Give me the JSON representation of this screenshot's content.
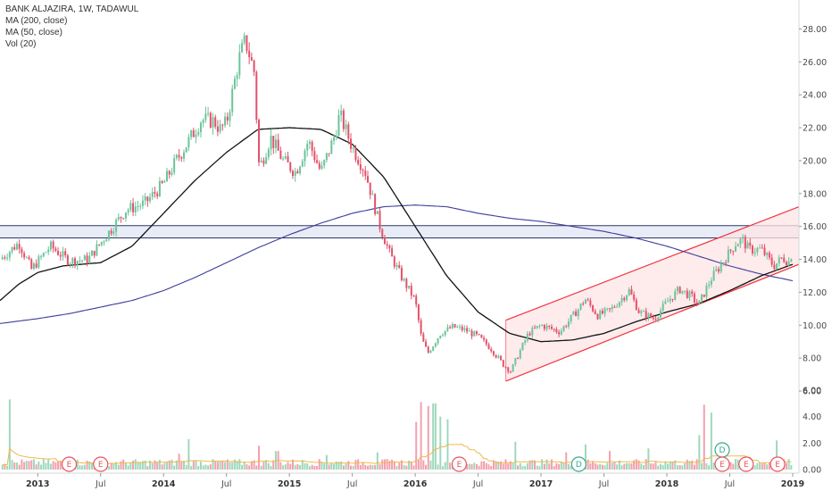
{
  "legend": {
    "title": "BANK ALJAZIRA, 1W, TADAWUL",
    "ma200": "MA (200, close)",
    "ma50": "MA (50, close)",
    "vol": "Vol (20)"
  },
  "colors": {
    "up": "#6bc49a",
    "down": "#e4516a",
    "up_vol": "#9fd8bd",
    "down_vol": "#f2a1ad",
    "ma50": "#111111",
    "ma200": "#3c3c9c",
    "vol_ma": "#f2b84b",
    "channel": "#f0343f",
    "channel_fill": "#fde4e6",
    "resistance_band": "#e8ecf7",
    "resistance_line": "#2c3a66",
    "event_e": "#e9535f",
    "event_d": "#3aa88e"
  },
  "chart_data": {
    "type": "candlestick",
    "title": "BANK ALJAZIRA, 1W, TADAWUL",
    "price_axis": {
      "ylim": [
        6,
        29
      ],
      "ticks": [
        "6.00",
        "8.00",
        "10.00",
        "12.00",
        "14.00",
        "16.00",
        "18.00",
        "20.00",
        "22.00",
        "24.00",
        "26.00",
        "28.00"
      ]
    },
    "volume_axis": {
      "ylim": [
        0,
        6
      ],
      "ticks": [
        "0.00",
        "2.00",
        "4.00",
        "6.00"
      ]
    },
    "x_axis": {
      "range": [
        2012.7,
        2019.05
      ],
      "ticks": [
        {
          "label": "2013",
          "t": 2013.0,
          "bold": true
        },
        {
          "label": "Jul",
          "t": 2013.5,
          "bold": false
        },
        {
          "label": "2014",
          "t": 2014.0,
          "bold": true
        },
        {
          "label": "Jul",
          "t": 2014.5,
          "bold": false
        },
        {
          "label": "2015",
          "t": 2015.0,
          "bold": true
        },
        {
          "label": "Jul",
          "t": 2015.5,
          "bold": false
        },
        {
          "label": "2016",
          "t": 2016.0,
          "bold": true
        },
        {
          "label": "Jul",
          "t": 2016.5,
          "bold": false
        },
        {
          "label": "2017",
          "t": 2017.0,
          "bold": true
        },
        {
          "label": "Jul",
          "t": 2017.5,
          "bold": false
        },
        {
          "label": "2018",
          "t": 2018.0,
          "bold": true
        },
        {
          "label": "Jul",
          "t": 2018.5,
          "bold": false
        },
        {
          "label": "2019",
          "t": 2019.0,
          "bold": true
        }
      ]
    },
    "close_keypoints": [
      [
        2012.7,
        14.0
      ],
      [
        2012.85,
        15.0
      ],
      [
        2012.95,
        13.4
      ],
      [
        2013.1,
        14.8
      ],
      [
        2013.25,
        13.9
      ],
      [
        2013.4,
        14.0
      ],
      [
        2013.55,
        15.5
      ],
      [
        2013.7,
        17.0
      ],
      [
        2013.85,
        17.4
      ],
      [
        2014.0,
        18.6
      ],
      [
        2014.1,
        20.0
      ],
      [
        2014.2,
        21.2
      ],
      [
        2014.3,
        22.5
      ],
      [
        2014.4,
        22.4
      ],
      [
        2014.45,
        21.9
      ],
      [
        2014.5,
        22.3
      ],
      [
        2014.6,
        26.2
      ],
      [
        2014.65,
        27.3
      ],
      [
        2014.72,
        25.4
      ],
      [
        2014.76,
        19.5
      ],
      [
        2014.85,
        21.4
      ],
      [
        2014.95,
        20.0
      ],
      [
        2015.05,
        19.3
      ],
      [
        2015.15,
        21.2
      ],
      [
        2015.25,
        19.3
      ],
      [
        2015.35,
        21.3
      ],
      [
        2015.4,
        22.8
      ],
      [
        2015.5,
        20.8
      ],
      [
        2015.6,
        19.4
      ],
      [
        2015.65,
        18.0
      ],
      [
        2015.72,
        16.0
      ],
      [
        2015.8,
        14.3
      ],
      [
        2015.9,
        12.8
      ],
      [
        2016.0,
        11.5
      ],
      [
        2016.05,
        9.2
      ],
      [
        2016.1,
        8.3
      ],
      [
        2016.2,
        9.5
      ],
      [
        2016.3,
        9.9
      ],
      [
        2016.4,
        9.7
      ],
      [
        2016.5,
        9.3
      ],
      [
        2016.6,
        8.6
      ],
      [
        2016.7,
        7.6
      ],
      [
        2016.76,
        7.2
      ],
      [
        2016.8,
        7.9
      ],
      [
        2016.9,
        9.5
      ],
      [
        2017.0,
        10.0
      ],
      [
        2017.15,
        9.6
      ],
      [
        2017.3,
        11.0
      ],
      [
        2017.35,
        11.6
      ],
      [
        2017.45,
        10.6
      ],
      [
        2017.55,
        10.9
      ],
      [
        2017.7,
        12.1
      ],
      [
        2017.78,
        10.8
      ],
      [
        2017.9,
        10.4
      ],
      [
        2018.0,
        11.4
      ],
      [
        2018.1,
        12.2
      ],
      [
        2018.2,
        11.7
      ],
      [
        2018.25,
        11.2
      ],
      [
        2018.35,
        12.8
      ],
      [
        2018.45,
        13.9
      ],
      [
        2018.55,
        15.0
      ],
      [
        2018.6,
        15.2
      ],
      [
        2018.65,
        14.6
      ],
      [
        2018.75,
        14.6
      ],
      [
        2018.85,
        13.6
      ],
      [
        2018.92,
        14.1
      ],
      [
        2018.98,
        13.8
      ],
      [
        2019.0,
        14.9
      ]
    ],
    "ma50_keypoints": [
      [
        2012.7,
        11.5
      ],
      [
        2012.85,
        12.5
      ],
      [
        2013.0,
        13.2
      ],
      [
        2013.2,
        13.6
      ],
      [
        2013.5,
        13.8
      ],
      [
        2013.75,
        14.8
      ],
      [
        2014.0,
        16.8
      ],
      [
        2014.25,
        18.8
      ],
      [
        2014.5,
        20.5
      ],
      [
        2014.75,
        21.9
      ],
      [
        2015.0,
        22.0
      ],
      [
        2015.25,
        21.9
      ],
      [
        2015.5,
        21.0
      ],
      [
        2015.75,
        19.0
      ],
      [
        2016.0,
        16.0
      ],
      [
        2016.25,
        13.0
      ],
      [
        2016.5,
        10.8
      ],
      [
        2016.75,
        9.5
      ],
      [
        2017.0,
        9.0
      ],
      [
        2017.25,
        9.1
      ],
      [
        2017.5,
        9.5
      ],
      [
        2017.75,
        10.2
      ],
      [
        2018.0,
        10.8
      ],
      [
        2018.25,
        11.3
      ],
      [
        2018.5,
        12.1
      ],
      [
        2018.75,
        13.0
      ],
      [
        2019.0,
        13.7
      ]
    ],
    "ma200_keypoints": [
      [
        2012.7,
        10.1
      ],
      [
        2013.0,
        10.4
      ],
      [
        2013.25,
        10.7
      ],
      [
        2013.5,
        11.1
      ],
      [
        2013.75,
        11.5
      ],
      [
        2014.0,
        12.1
      ],
      [
        2014.25,
        12.9
      ],
      [
        2014.5,
        13.8
      ],
      [
        2014.75,
        14.7
      ],
      [
        2015.0,
        15.5
      ],
      [
        2015.25,
        16.2
      ],
      [
        2015.5,
        16.8
      ],
      [
        2015.75,
        17.2
      ],
      [
        2016.0,
        17.3
      ],
      [
        2016.25,
        17.2
      ],
      [
        2016.5,
        16.8
      ],
      [
        2016.75,
        16.5
      ],
      [
        2017.0,
        16.3
      ],
      [
        2017.25,
        16.0
      ],
      [
        2017.5,
        15.7
      ],
      [
        2017.75,
        15.3
      ],
      [
        2018.0,
        14.8
      ],
      [
        2018.25,
        14.2
      ],
      [
        2018.5,
        13.6
      ],
      [
        2018.75,
        13.1
      ],
      [
        2019.0,
        12.7
      ]
    ],
    "resistance_band": [
      15.3,
      16.05
    ],
    "channel": {
      "upper": [
        [
          2016.72,
          10.3
        ],
        [
          2019.05,
          17.2
        ]
      ],
      "lower": [
        [
          2016.72,
          6.6
        ],
        [
          2019.05,
          13.7
        ]
      ]
    },
    "volume_spikes": [
      [
        2012.78,
        5.3
      ],
      [
        2014.12,
        1.2
      ],
      [
        2014.2,
        2.3
      ],
      [
        2014.75,
        1.8
      ],
      [
        2014.9,
        1.4
      ],
      [
        2015.3,
        1.1
      ],
      [
        2015.7,
        1.3
      ],
      [
        2016.0,
        3.6
      ],
      [
        2016.05,
        5.1
      ],
      [
        2016.1,
        4.8
      ],
      [
        2016.15,
        5.0
      ],
      [
        2016.2,
        4.0
      ],
      [
        2016.25,
        3.8
      ],
      [
        2016.8,
        2.1
      ],
      [
        2017.2,
        1.3
      ],
      [
        2017.35,
        1.9
      ],
      [
        2017.55,
        1.4
      ],
      [
        2017.85,
        1.6
      ],
      [
        2018.25,
        2.6
      ],
      [
        2018.3,
        4.9
      ],
      [
        2018.35,
        4.3
      ],
      [
        2018.88,
        2.2
      ]
    ],
    "events": [
      {
        "label": "E",
        "t": 2013.25,
        "type": "earnings"
      },
      {
        "label": "E",
        "t": 2013.5,
        "type": "earnings"
      },
      {
        "label": "E",
        "t": 2016.35,
        "type": "earnings"
      },
      {
        "label": "D",
        "t": 2017.3,
        "type": "dividend"
      },
      {
        "label": "D",
        "t": 2018.44,
        "type": "dividend",
        "row": 2
      },
      {
        "label": "E",
        "t": 2018.44,
        "type": "earnings"
      },
      {
        "label": "E",
        "t": 2018.63,
        "type": "earnings"
      },
      {
        "label": "E",
        "t": 2018.88,
        "type": "earnings"
      }
    ]
  }
}
